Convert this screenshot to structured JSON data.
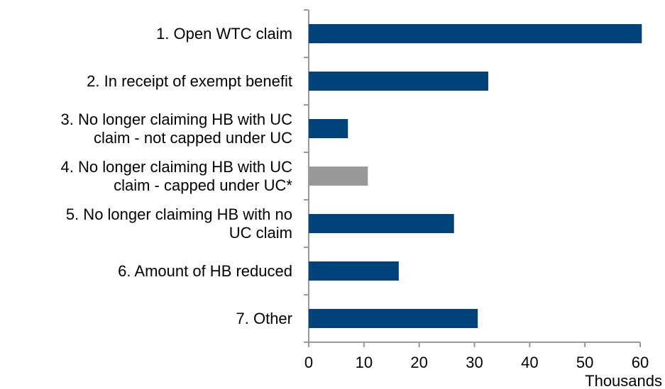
{
  "chart_data": {
    "type": "bar",
    "orientation": "horizontal",
    "categories": [
      "1. Open WTC claim",
      "2. In receipt of exempt benefit",
      "3. No longer claiming HB with UC\nclaim - not capped under UC",
      "4. No longer claiming HB with UC\nclaim - capped under UC*",
      "5. No longer claiming HB with no\nUC claim",
      "6. Amount of HB reduced",
      "7. Other"
    ],
    "values": [
      60.3,
      32.5,
      7.1,
      10.7,
      26.3,
      16.3,
      30.6
    ],
    "colors": [
      "#00427a",
      "#00427a",
      "#00427a",
      "#999999",
      "#00427a",
      "#00427a",
      "#00427a"
    ],
    "xlim": [
      0,
      60
    ],
    "xticks": [
      0,
      10,
      20,
      30,
      40,
      50,
      60
    ],
    "x_label": "Thousands",
    "grid": false
  }
}
